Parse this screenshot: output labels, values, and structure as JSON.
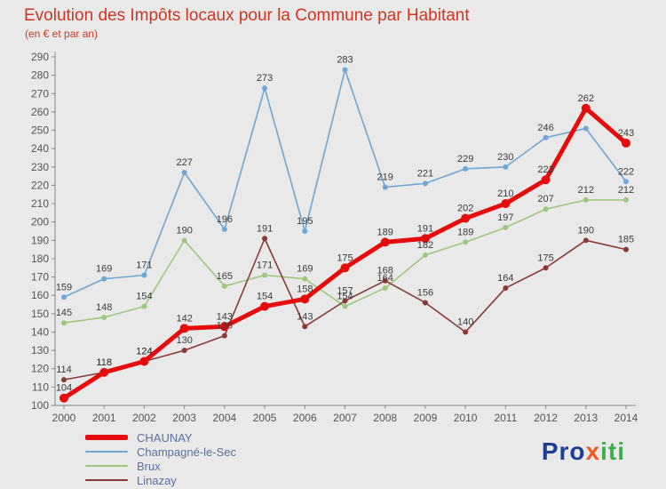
{
  "title": "Evolution des Impôts locaux pour la Commune par Habitant",
  "subtitle": "(en € et par an)",
  "colors": {
    "background": "#e9e9e9",
    "title": "#d2351f",
    "axis": "#888888",
    "tick_label": "#555555",
    "value_label": "#3a3a3a",
    "legend_text": "#5c6fa0",
    "chaunay": "#e50c0c",
    "champagne_le_sec": "#6fa6d5",
    "brux": "#9cc87e",
    "linazay": "#8a3a34"
  },
  "chart_data": {
    "type": "line",
    "title": "Evolution des Impôts locaux pour la Commune par Habitant",
    "subtitle": "(en € et par an)",
    "x": [
      2000,
      2001,
      2002,
      2003,
      2004,
      2005,
      2006,
      2007,
      2008,
      2009,
      2010,
      2011,
      2012,
      2013,
      2014
    ],
    "ylim": [
      100,
      290
    ],
    "ytick_step": 10,
    "grid": false,
    "legend_position": "bottom-left",
    "series": [
      {
        "name": "CHAUNAY",
        "color": "#e50c0c",
        "line_width": 5,
        "marker": 5,
        "values": [
          104,
          118,
          124,
          142,
          143,
          154,
          158,
          175,
          189,
          191,
          202,
          210,
          223,
          262,
          243
        ]
      },
      {
        "name": "Champagné-le-Sec",
        "color": "#6fa6d5",
        "line_width": 1.6,
        "marker": 3,
        "values": [
          159,
          169,
          171,
          227,
          196,
          273,
          195,
          283,
          219,
          221,
          229,
          230,
          246,
          251,
          222
        ],
        "hidden_labels": [
          13
        ]
      },
      {
        "name": "Brux",
        "color": "#9cc87e",
        "line_width": 1.6,
        "marker": 3,
        "values": [
          145,
          148,
          154,
          190,
          165,
          171,
          169,
          154,
          164,
          182,
          189,
          197,
          207,
          212,
          212
        ]
      },
      {
        "name": "Linazay",
        "color": "#8a3a34",
        "line_width": 1.6,
        "marker": 3,
        "values": [
          114,
          118,
          124,
          130,
          138,
          191,
          143,
          157,
          168,
          156,
          140,
          164,
          175,
          190,
          185
        ]
      }
    ]
  },
  "logo": {
    "parts": [
      {
        "text": "Pro",
        "color": "#1c3e94"
      },
      {
        "text": "x",
        "color": "#f05a22"
      },
      {
        "text": "iti",
        "color": "#3fae49"
      }
    ]
  }
}
